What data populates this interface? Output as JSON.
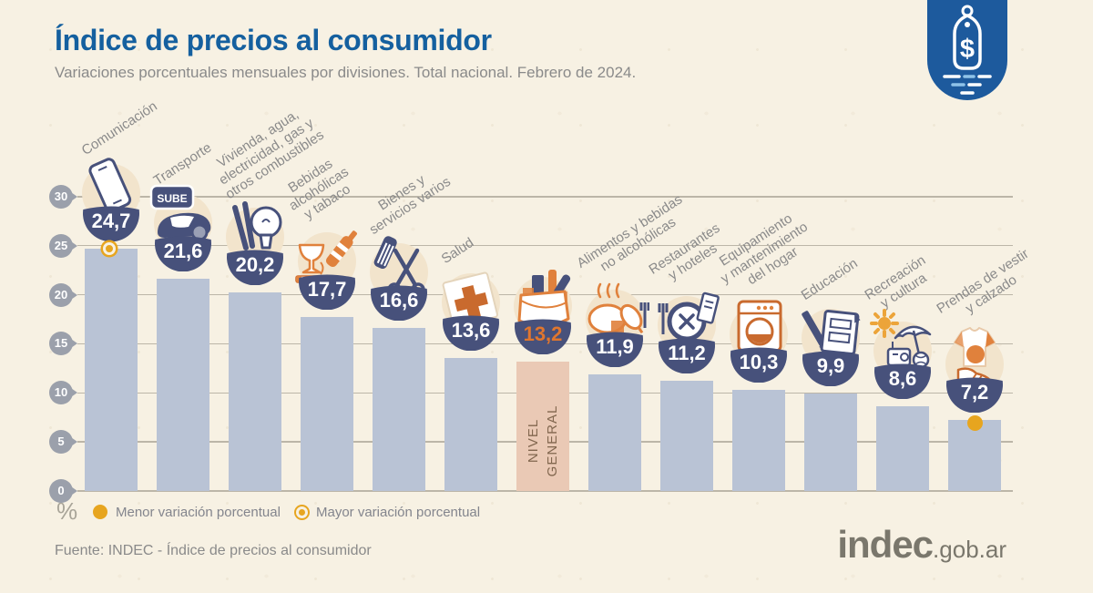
{
  "header": {
    "title": "Índice de precios al consumidor",
    "subtitle": "Variaciones porcentuales mensuales por divisiones. Total nacional. Febrero de 2024."
  },
  "badge": {
    "symbol": "$"
  },
  "chart_data": {
    "type": "bar",
    "title": "Índice de precios al consumidor",
    "subtitle": "Variaciones porcentuales mensuales por divisiones. Total nacional. Febrero de 2024.",
    "ylabel": "%",
    "ylim": [
      0,
      30
    ],
    "yticks": [
      0,
      5,
      10,
      15,
      20,
      25,
      30
    ],
    "grid": true,
    "items": [
      {
        "label": "Comunicación",
        "label_lines": [
          "Comunicación"
        ],
        "value": 24.7,
        "display": "24,7",
        "icon": "smartphone-icon",
        "marker": "ring-dot",
        "marker_meaning": "Mayor variación porcentual"
      },
      {
        "label": "Transporte",
        "label_lines": [
          "Transporte"
        ],
        "value": 21.6,
        "display": "21,6",
        "icon": "transport-icon"
      },
      {
        "label": "Vivienda, agua, electricidad, gas y otros combustibles",
        "label_lines": [
          "Vivienda, agua,",
          "electricidad, gas y",
          "otros combustibles"
        ],
        "value": 20.2,
        "display": "20,2",
        "icon": "housing-icon"
      },
      {
        "label": "Bebidas alcohólicas y tabaco",
        "label_lines": [
          "Bebidas",
          "alcohólicas",
          "y tabaco"
        ],
        "value": 17.7,
        "display": "17,7",
        "icon": "alcohol-tobacco-icon"
      },
      {
        "label": "Bienes y servicios varios",
        "label_lines": [
          "Bienes y",
          "servicios varios"
        ],
        "value": 16.6,
        "display": "16,6",
        "icon": "scissors-comb-icon"
      },
      {
        "label": "Salud",
        "label_lines": [
          "Salud"
        ],
        "value": 13.6,
        "display": "13,6",
        "icon": "first-aid-icon"
      },
      {
        "label": "Nivel general",
        "bar_label": "NIVEL\nGENERAL",
        "value": 13.2,
        "display": "13,2",
        "icon": "grocery-bag-icon",
        "highlight": true
      },
      {
        "label": "Alimentos y bebidas no alcohólicas",
        "label_lines": [
          "Alimentos y bebidas",
          "no alcohólicas"
        ],
        "value": 11.9,
        "display": "11,9",
        "icon": "roast-chicken-icon"
      },
      {
        "label": "Restaurantes y hoteles",
        "label_lines": [
          "Restaurantes",
          "y hoteles"
        ],
        "value": 11.2,
        "display": "11,2",
        "icon": "plate-cutlery-icon"
      },
      {
        "label": "Equipamiento y mantenimiento del hogar",
        "label_lines": [
          "Equipamiento",
          "y mantenimiento",
          "del hogar"
        ],
        "value": 10.3,
        "display": "10,3",
        "icon": "washing-machine-icon"
      },
      {
        "label": "Educación",
        "label_lines": [
          "Educación"
        ],
        "value": 9.9,
        "display": "9,9",
        "icon": "notebook-pencil-icon"
      },
      {
        "label": "Recreación y cultura",
        "label_lines": [
          "Recreación",
          "y cultura"
        ],
        "value": 8.6,
        "display": "8,6",
        "icon": "beach-umbrella-icon"
      },
      {
        "label": "Prendas de vestir y calzado",
        "label_lines": [
          "Prendas de vestir",
          "y calzado"
        ],
        "value": 7.2,
        "display": "7,2",
        "icon": "tshirt-sneaker-icon",
        "marker": "solid-dot",
        "marker_meaning": "Menor variación porcentual"
      }
    ]
  },
  "legend": {
    "items": [
      {
        "label": "Menor variación porcentual",
        "marker": "solid-dot"
      },
      {
        "label": "Mayor variación porcentual",
        "marker": "ring-dot"
      }
    ]
  },
  "footer": {
    "source": "Fuente: INDEC - Índice de precios al consumidor",
    "logo_main": "indec",
    "logo_suffix": ".gob.ar"
  },
  "colors": {
    "background": "#f7f1e3",
    "title": "#15609f",
    "label": "#8a8a8a",
    "bar": "#b9c3d5",
    "bar_highlight": "#eac9b5",
    "bubble": "#47517b",
    "value_text": "#ffffff",
    "value_text_highlight": "#e0762e",
    "marker": "#e7a51f",
    "grid": "#bcb6a8",
    "badge": "#1d5a9d"
  }
}
